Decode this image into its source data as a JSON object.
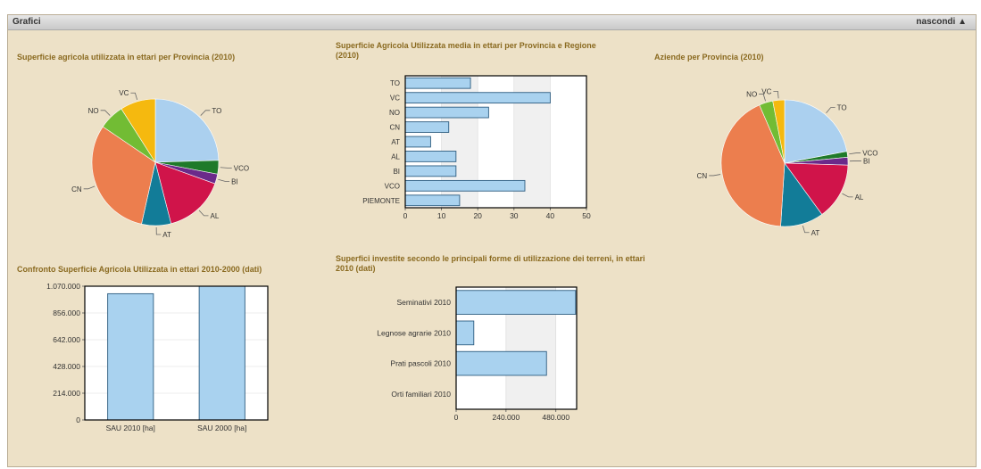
{
  "header": {
    "title": "Grafici",
    "hide_label": "nascondi ▲"
  },
  "colors": {
    "bar_fill": "#a9d2ef",
    "bar_stroke": "#2d5d80",
    "plot_bg": "#ffffff",
    "band": "#f0f0f0",
    "grid": "#d9d9d9"
  },
  "chart_data": [
    {
      "id": "pie1",
      "type": "pie",
      "title": "Superficie agricola utilizzata in ettari per Provincia (2010)",
      "slices": [
        {
          "label": "TO",
          "value": 24.5,
          "color": "#abd0ef"
        },
        {
          "label": "VCO",
          "value": 3.5,
          "color": "#1f7a2a"
        },
        {
          "label": "BI",
          "value": 2.5,
          "color": "#6b2a8a"
        },
        {
          "label": "AL",
          "value": 15.5,
          "color": "#d0144a"
        },
        {
          "label": "AT",
          "value": 7.5,
          "color": "#127c98"
        },
        {
          "label": "CN",
          "value": 31.0,
          "color": "#ec7e4e"
        },
        {
          "label": "NO",
          "value": 6.5,
          "color": "#72bc34"
        },
        {
          "label": "VC",
          "value": 9.0,
          "color": "#f5b90f"
        }
      ]
    },
    {
      "id": "hbar1",
      "type": "bar",
      "orientation": "horizontal",
      "title": "Superficie Agricola Utilizzata media in ettari per Provincia e Regione (2010)",
      "categories": [
        "TO",
        "VC",
        "NO",
        "CN",
        "AT",
        "AL",
        "BI",
        "VCO",
        "PIEMONTE"
      ],
      "values": [
        18,
        40,
        23,
        12,
        7,
        14,
        14,
        33,
        15
      ],
      "xlim": [
        0,
        50
      ],
      "ticks": [
        "0",
        "10",
        "20",
        "30",
        "40",
        "50"
      ]
    },
    {
      "id": "pie2",
      "type": "pie",
      "title": "Aziende per Provincia (2010)",
      "slices": [
        {
          "label": "TO",
          "value": 22.0,
          "color": "#abd0ef"
        },
        {
          "label": "VCO",
          "value": 1.5,
          "color": "#1f7a2a"
        },
        {
          "label": "BI",
          "value": 2.0,
          "color": "#6b2a8a"
        },
        {
          "label": "AL",
          "value": 14.5,
          "color": "#d0144a"
        },
        {
          "label": "AT",
          "value": 11.0,
          "color": "#127c98"
        },
        {
          "label": "CN",
          "value": 42.5,
          "color": "#ec7e4e"
        },
        {
          "label": "NO",
          "value": 3.5,
          "color": "#72bc34"
        },
        {
          "label": "VC",
          "value": 3.0,
          "color": "#f5b90f"
        }
      ]
    },
    {
      "id": "vbar",
      "type": "bar",
      "orientation": "vertical",
      "title": "Confronto Superficie Agricola Utilizzata in ettari 2010-2000 (dati)",
      "categories": [
        "SAU 2010 [ha]",
        "SAU 2000 [ha]"
      ],
      "values": [
        1010000,
        1070000
      ],
      "ylim": [
        0,
        1070000
      ],
      "ticks": [
        {
          "value": 0,
          "label": "0"
        },
        {
          "value": 214000,
          "label": "214.000"
        },
        {
          "value": 428000,
          "label": "428.000"
        },
        {
          "value": 642000,
          "label": "642.000"
        },
        {
          "value": 856000,
          "label": "856.000"
        },
        {
          "value": 1070000,
          "label": "1.070.000"
        }
      ]
    },
    {
      "id": "hbar2",
      "type": "bar",
      "orientation": "horizontal",
      "title": "Superfici investite secondo le principali forme di utilizzazione dei terreni, in ettari 2010 (dati)",
      "categories": [
        "Seminativi 2010",
        "Legnose agrarie 2010",
        "Prati pascoli 2010",
        "Orti familiari 2010"
      ],
      "values": [
        575000,
        85000,
        435000,
        0
      ],
      "xlim": [
        0,
        580000
      ],
      "ticks": [
        {
          "value": 0,
          "label": "0"
        },
        {
          "value": 240000,
          "label": "240.000"
        },
        {
          "value": 480000,
          "label": "480.000"
        }
      ]
    }
  ]
}
